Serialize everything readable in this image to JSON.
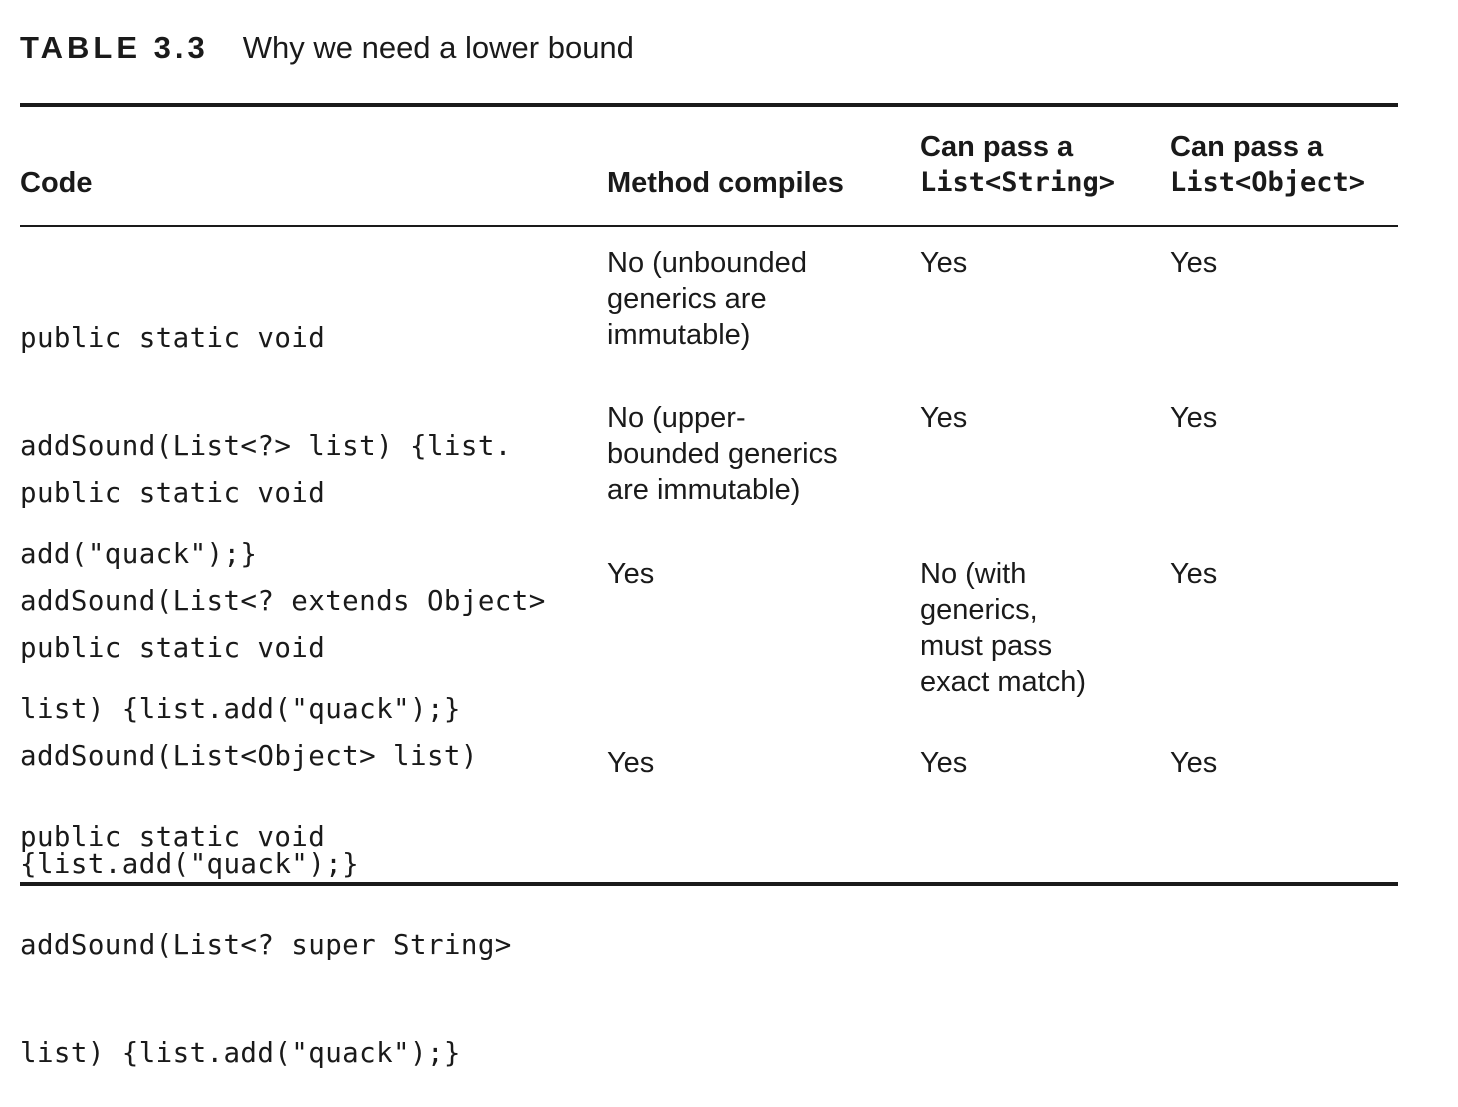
{
  "table": {
    "label": "TABLE 3.3",
    "title": "Why we need a lower bound",
    "headers": {
      "code": "Code",
      "method_compiles": "Method compiles",
      "pass_string": [
        "Can pass a",
        "List<String>"
      ],
      "pass_object": [
        "Can pass a",
        "List<Object>"
      ]
    },
    "rows": [
      {
        "code": [
          "public static void",
          "addSound(List<?> list) {list.",
          "add(\"quack\");}"
        ],
        "method_compiles": [
          "No (unbounded",
          "generics are",
          "immutable)"
        ],
        "pass_string": [
          "Yes"
        ],
        "pass_object": [
          "Yes"
        ]
      },
      {
        "code": [
          "public static void",
          "addSound(List<? extends Object>",
          "list) {list.add(\"quack\");}"
        ],
        "method_compiles": [
          "No (upper-",
          "bounded generics",
          "are immutable)"
        ],
        "pass_string": [
          "Yes"
        ],
        "pass_object": [
          "Yes"
        ]
      },
      {
        "code": [
          "public static void",
          "addSound(List<Object> list)",
          "{list.add(\"quack\");}"
        ],
        "method_compiles": [
          "Yes"
        ],
        "pass_string": [
          "No (with",
          "generics,",
          "must pass",
          "exact match)"
        ],
        "pass_object": [
          "Yes"
        ]
      },
      {
        "code": [
          "public static void",
          "addSound(List<? super String>",
          "list) {list.add(\"quack\");}"
        ],
        "method_compiles": [
          "Yes"
        ],
        "pass_string": [
          "Yes"
        ],
        "pass_object": [
          "Yes"
        ]
      }
    ]
  }
}
